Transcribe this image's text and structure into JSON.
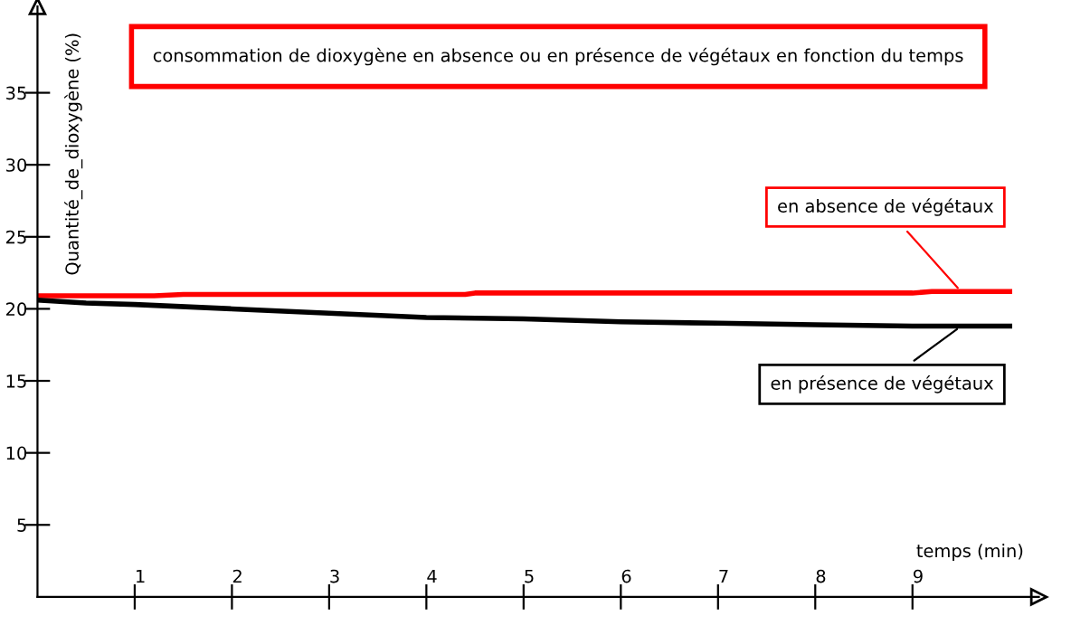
{
  "chart_data": {
    "type": "line",
    "title": "consommation de dioxygène en absence ou en présence de végétaux en fonction du temps",
    "xlabel": "temps (min)",
    "ylabel": "Quantité_de_dioxygène (%)",
    "series": [
      {
        "name": "en absence de végétaux",
        "color": "#ff0000",
        "x": [
          0,
          1.2,
          1.5,
          4.4,
          4.5,
          9.0,
          9.2,
          10
        ],
        "values": [
          20.9,
          20.9,
          21.0,
          21.0,
          21.1,
          21.1,
          21.2,
          21.2
        ]
      },
      {
        "name": "en présence de végétaux",
        "color": "#000000",
        "x": [
          0,
          0.5,
          1,
          2,
          3,
          4,
          5,
          6,
          7,
          8,
          9,
          10
        ],
        "values": [
          20.6,
          20.4,
          20.3,
          20.0,
          19.7,
          19.4,
          19.3,
          19.1,
          19.0,
          18.9,
          18.8,
          18.8
        ]
      }
    ],
    "xlim": [
      0,
      10.3
    ],
    "ylim": [
      0,
      41
    ],
    "xticks": [
      1,
      2,
      3,
      4,
      5,
      6,
      7,
      8,
      9
    ],
    "yticks": [
      5,
      10,
      15,
      20,
      25,
      30,
      35
    ],
    "grid": false,
    "legend": "right",
    "marker": "none",
    "line_style": "solid"
  }
}
